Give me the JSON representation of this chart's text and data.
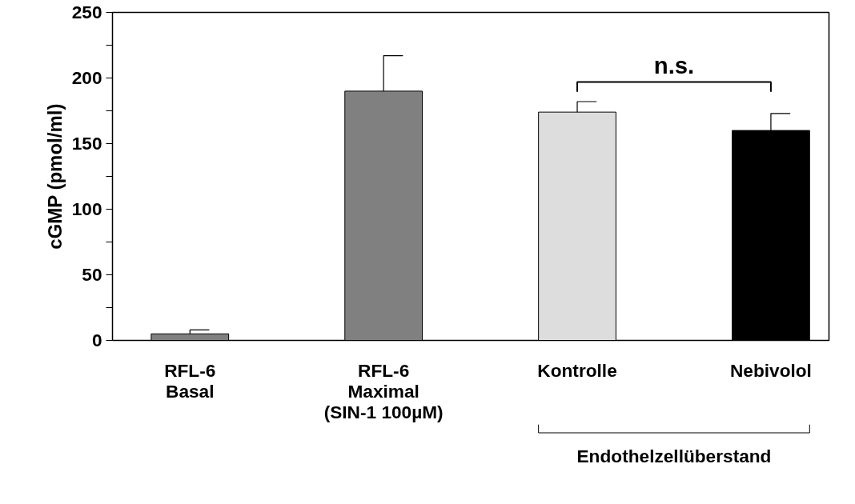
{
  "chart_data": {
    "type": "bar",
    "ylabel": "cGMP (pmol/ml)",
    "categories": [
      "RFL-6\nBasal",
      "RFL-6\nMaximal\n(SIN-1 100µM)",
      "Kontrolle",
      "Nebivolol"
    ],
    "values": [
      5,
      190,
      174,
      160
    ],
    "colors": [
      "#808080",
      "#808080",
      "#dddddd",
      "#000000"
    ],
    "errors": [
      [
        5,
        8
      ],
      [
        190,
        217
      ],
      [
        174,
        182
      ],
      [
        160,
        173
      ]
    ],
    "ylim": [
      0,
      250
    ],
    "yticks": [
      0,
      {
        "value": 25,
        "label": null
      },
      50,
      {
        "value": 75,
        "label": null
      },
      100,
      {
        "value": 125,
        "label": null
      },
      150,
      {
        "value": 175,
        "label": null
      },
      200,
      {
        "value": 225,
        "label": null
      },
      250
    ],
    "grid": false,
    "annotations": [
      "n.s.",
      "Endothelzellüberstand"
    ]
  }
}
